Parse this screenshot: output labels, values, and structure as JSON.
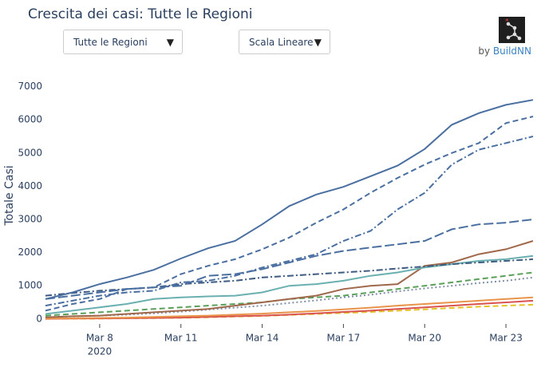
{
  "title": "Crescita dei casi: Tutte le Regioni",
  "controls": {
    "region": "Tutte le Regioni",
    "scale": "Scala Lineare"
  },
  "credit": {
    "by": "by",
    "brand": "BuildNN"
  },
  "chart_data": {
    "type": "line",
    "y_label": "Totale Casi",
    "x_axis_year": "2020",
    "x": [
      "2020-03-06",
      "2020-03-07",
      "2020-03-08",
      "2020-03-09",
      "2020-03-10",
      "2020-03-11",
      "2020-03-12",
      "2020-03-13",
      "2020-03-14",
      "2020-03-15",
      "2020-03-16",
      "2020-03-17",
      "2020-03-18",
      "2020-03-19",
      "2020-03-20",
      "2020-03-21",
      "2020-03-22",
      "2020-03-23",
      "2020-03-24"
    ],
    "xlim": [
      "2020-03-06",
      "2020-03-24"
    ],
    "xticks": [
      {
        "value": "2020-03-08",
        "label": "Mar 8"
      },
      {
        "value": "2020-03-11",
        "label": "Mar 11"
      },
      {
        "value": "2020-03-14",
        "label": "Mar 14"
      },
      {
        "value": "2020-03-17",
        "label": "Mar 17"
      },
      {
        "value": "2020-03-20",
        "label": "Mar 20"
      },
      {
        "value": "2020-03-23",
        "label": "Mar 23"
      }
    ],
    "ylim": [
      -150,
      7350
    ],
    "yticks": [
      0,
      1000,
      2000,
      3000,
      4000,
      5000,
      6000,
      7000
    ],
    "grid": false,
    "series": [
      {
        "color": "#4a6fa0",
        "dash": "solid",
        "values": [
          600,
          800,
          1050,
          1250,
          1480,
          1820,
          2130,
          2350,
          2850,
          3400,
          3750,
          3980,
          4300,
          4620,
          5120,
          5850,
          6200,
          6450,
          6600
        ]
      },
      {
        "color": "#4a6fa0",
        "dash": "dash",
        "values": [
          250,
          450,
          600,
          900,
          950,
          1350,
          1600,
          1800,
          2100,
          2450,
          2900,
          3300,
          3800,
          4250,
          4650,
          5000,
          5300,
          5900,
          6100
        ]
      },
      {
        "color": "#4a6fa0",
        "dash": "dashdot",
        "values": [
          400,
          550,
          700,
          800,
          850,
          1100,
          1150,
          1300,
          1550,
          1750,
          1950,
          2350,
          2650,
          3300,
          3800,
          4650,
          5100,
          5300,
          5500
        ]
      },
      {
        "color": "#4a6fa0",
        "dash": "longdash",
        "values": [
          600,
          700,
          800,
          900,
          950,
          1000,
          1300,
          1350,
          1500,
          1700,
          1900,
          2050,
          2150,
          2250,
          2350,
          2700,
          2850,
          2900,
          3000
        ]
      },
      {
        "color": "#3d5a80",
        "dash": "dashdot",
        "values": [
          700,
          780,
          850,
          900,
          950,
          1050,
          1100,
          1150,
          1250,
          1300,
          1350,
          1400,
          1450,
          1520,
          1580,
          1650,
          1700,
          1750,
          1800
        ]
      },
      {
        "color": "#6ab0b0",
        "dash": "solid",
        "values": [
          150,
          250,
          350,
          450,
          600,
          650,
          680,
          700,
          800,
          1000,
          1050,
          1150,
          1300,
          1400,
          1550,
          1650,
          1750,
          1800,
          1900
        ]
      },
      {
        "color": "#a0684a",
        "dash": "solid",
        "values": [
          50,
          80,
          100,
          150,
          200,
          250,
          300,
          400,
          500,
          600,
          700,
          900,
          1000,
          1050,
          1600,
          1700,
          1950,
          2100,
          2350
        ]
      },
      {
        "color": "#5aa05a",
        "dash": "dash",
        "values": [
          100,
          150,
          200,
          250,
          300,
          350,
          400,
          450,
          500,
          600,
          650,
          700,
          800,
          900,
          1000,
          1100,
          1200,
          1300,
          1400
        ]
      },
      {
        "color": "#7f8fa6",
        "dash": "dot",
        "values": [
          50,
          80,
          100,
          130,
          170,
          220,
          280,
          340,
          400,
          480,
          560,
          650,
          730,
          830,
          920,
          1000,
          1080,
          1150,
          1250
        ]
      },
      {
        "color": "#e8944a",
        "dash": "solid",
        "values": [
          10,
          20,
          30,
          40,
          60,
          80,
          100,
          130,
          160,
          200,
          240,
          290,
          340,
          400,
          450,
          500,
          550,
          600,
          650
        ]
      },
      {
        "color": "#d9534f",
        "dash": "solid",
        "values": [
          5,
          10,
          15,
          20,
          30,
          40,
          60,
          80,
          100,
          130,
          170,
          210,
          250,
          300,
          350,
          400,
          450,
          500,
          550
        ]
      },
      {
        "color": "#e6c229",
        "dash": "dash",
        "values": [
          5,
          8,
          12,
          18,
          25,
          35,
          50,
          70,
          90,
          120,
          150,
          180,
          210,
          250,
          290,
          330,
          370,
          400,
          430
        ]
      }
    ]
  }
}
